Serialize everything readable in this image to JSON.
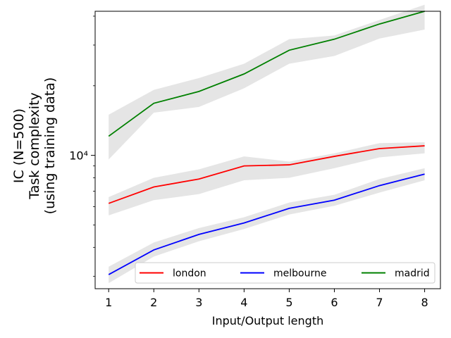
{
  "chart_data": {
    "type": "line",
    "xlabel": "Input/Output length",
    "ylabel_lines": [
      "IC (N=500)",
      "Task complexity",
      "(using training data)"
    ],
    "x": [
      1,
      2,
      3,
      4,
      5,
      6,
      7,
      8
    ],
    "x_ticks": [
      "1",
      "2",
      "3",
      "4",
      "5",
      "6",
      "7",
      "8"
    ],
    "y_scale": "log",
    "y_tick_label": "10⁴",
    "ylim": [
      2650,
      42000
    ],
    "grid": false,
    "legend_position": "lower-right",
    "band_color": "#d3d3d3",
    "series": [
      {
        "name": "london",
        "color": "#ff0000",
        "values": [
          6200,
          7300,
          7900,
          9000,
          9100,
          9900,
          10700,
          11000
        ],
        "lower": [
          5500,
          6400,
          6800,
          7800,
          8000,
          8800,
          9800,
          10200
        ],
        "upper": [
          6600,
          8000,
          8700,
          9900,
          9400,
          10200,
          11300,
          11400
        ]
      },
      {
        "name": "melbourne",
        "color": "#0000ff",
        "values": [
          3050,
          3900,
          4550,
          5100,
          5900,
          6400,
          7400,
          8300
        ],
        "lower": [
          2800,
          3650,
          4250,
          4800,
          5550,
          6050,
          6900,
          7800
        ],
        "upper": [
          3300,
          4200,
          4850,
          5400,
          6250,
          6750,
          7900,
          8800
        ]
      },
      {
        "name": "madrid",
        "color": "#008000",
        "values": [
          12100,
          16800,
          18900,
          22500,
          28500,
          31800,
          37000,
          42000
        ],
        "lower": [
          9600,
          15300,
          16200,
          19500,
          24900,
          26900,
          32000,
          35000
        ],
        "upper": [
          15000,
          19200,
          21600,
          24900,
          31800,
          33000,
          38500,
          44800
        ]
      }
    ]
  }
}
